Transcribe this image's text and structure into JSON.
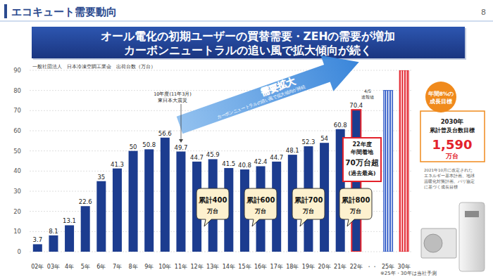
{
  "page": {
    "title": "エコキュート需要動向",
    "page_number": "8",
    "headline": [
      "オール電化の初期ユーザーの買替需要・ZEHの需要が増加",
      "カーボンニュートラルの追い風で拡大傾向が続く"
    ],
    "footnote": "※25年・30年は当社予測"
  },
  "chart_data": {
    "type": "bar",
    "y_label": "一般社団法人　日本冷凍空調工業会　出荷台数（万台）",
    "categories": [
      "02年",
      "03年",
      "4年",
      "5年",
      "6年",
      "7年",
      "8年",
      "9年",
      "10年",
      "11年",
      "12年",
      "13年",
      "14年",
      "15年",
      "16年",
      "17年",
      "18年",
      "19年",
      "20年",
      "21年",
      "22年",
      "・・",
      "25年",
      "30年"
    ],
    "values": [
      3.7,
      8.1,
      13.1,
      22.6,
      35,
      41.3,
      50,
      50.8,
      56.6,
      49.7,
      44.7,
      45.9,
      41.5,
      40.8,
      42.4,
      44.7,
      48.1,
      52.3,
      54,
      60.8,
      70.4,
      null,
      80,
      90
    ],
    "value_labels": [
      "3.7",
      "8.1",
      "13.1",
      "22.6",
      "35",
      "41.3",
      "50",
      "50.8",
      "56.6",
      "49.7",
      "44.7",
      "45.9",
      "41.5",
      "40.8",
      "42.4",
      "44.7",
      "48.1",
      "52.3",
      "54",
      "60.8",
      "70.4",
      null,
      null,
      null
    ],
    "colors": [
      "#1c3c8f",
      "#1c3c8f",
      "#1c3c8f",
      "#1c3c8f",
      "#1c3c8f",
      "#1c3c8f",
      "#1c3c8f",
      "#1c3c8f",
      "#1c3c8f",
      "#1c3c8f",
      "#1c3c8f",
      "#1c3c8f",
      "#1c3c8f",
      "#1c3c8f",
      "#1c3c8f",
      "#1c3c8f",
      "#1c3c8f",
      "#1c3c8f",
      "#1c3c8f",
      "#1c3c8f",
      "#1c3c8f",
      null,
      "#2a56c6",
      "#e3222b"
    ],
    "ylim": [
      0,
      90
    ],
    "yticks": [
      0,
      10,
      20,
      30,
      40,
      50,
      60,
      70,
      80,
      90
    ],
    "grid": true,
    "data_labels": true,
    "annotations": {
      "trend_arrow": {
        "title": "需要拡大",
        "text": "カーボンニュートラルの追い風で拡大傾向が持続"
      },
      "quake": [
        "10年度(11年3月)",
        "東日本大震災"
      ],
      "preliminary": [
        "4/5",
        "速報値"
      ],
      "record_box": [
        "22年度",
        "年間着地",
        "70万台超",
        "(過去最高)"
      ],
      "cumulative": [
        [
          "累計400",
          "万台"
        ],
        [
          "累計600",
          "万台"
        ],
        [
          "累計700",
          "万台"
        ],
        [
          "累計800",
          "万台"
        ]
      ]
    }
  },
  "side_panel": {
    "growth_target": [
      "年間8%の",
      "成長目標"
    ],
    "target_box": [
      "2030年",
      "累計普及台数目標",
      "1,590",
      "万台"
    ],
    "note": [
      "2021年10月に改定された",
      "エネルギー基本計画、地球",
      "温暖化対策計画、パリ協定",
      "に基づく成長目標"
    ]
  }
}
